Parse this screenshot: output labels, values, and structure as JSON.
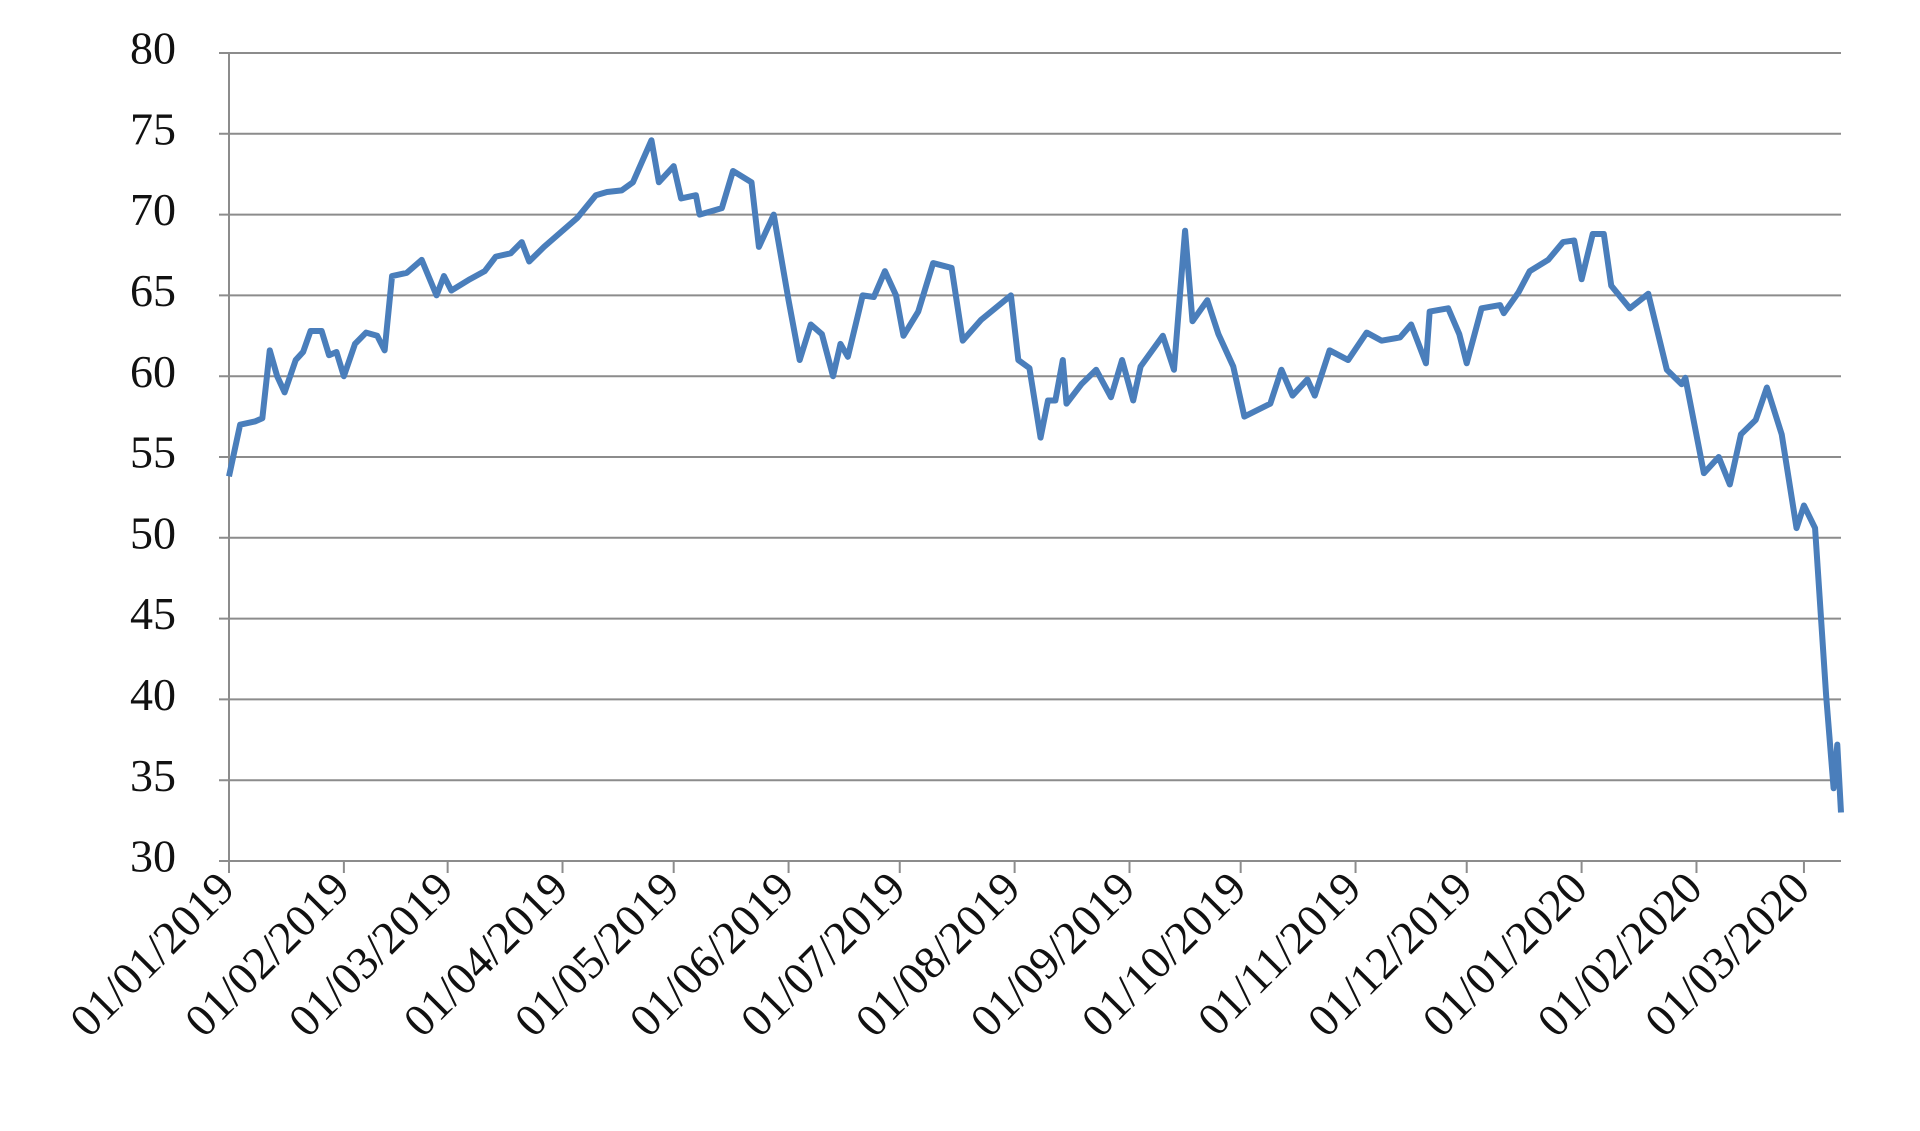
{
  "chart_data": {
    "type": "line",
    "x": [
      "2019-01-01",
      "2019-01-04",
      "2019-01-08",
      "2019-01-10",
      "2019-01-12",
      "2019-01-14",
      "2019-01-16",
      "2019-01-19",
      "2019-01-21",
      "2019-01-23",
      "2019-01-26",
      "2019-01-28",
      "2019-01-30",
      "2019-02-01",
      "2019-02-04",
      "2019-02-07",
      "2019-02-10",
      "2019-02-12",
      "2019-02-14",
      "2019-02-18",
      "2019-02-22",
      "2019-02-26",
      "2019-02-28",
      "2019-03-02",
      "2019-03-07",
      "2019-03-11",
      "2019-03-14",
      "2019-03-18",
      "2019-03-21",
      "2019-03-23",
      "2019-03-27",
      "2019-04-01",
      "2019-04-05",
      "2019-04-10",
      "2019-04-13",
      "2019-04-17",
      "2019-04-20",
      "2019-04-25",
      "2019-04-27",
      "2019-05-01",
      "2019-05-03",
      "2019-05-07",
      "2019-05-08",
      "2019-05-14",
      "2019-05-17",
      "2019-05-22",
      "2019-05-24",
      "2019-05-28",
      "2019-06-01",
      "2019-06-04",
      "2019-06-07",
      "2019-06-10",
      "2019-06-13",
      "2019-06-15",
      "2019-06-17",
      "2019-06-21",
      "2019-06-24",
      "2019-06-27",
      "2019-06-30",
      "2019-07-02",
      "2019-07-06",
      "2019-07-10",
      "2019-07-15",
      "2019-07-18",
      "2019-07-23",
      "2019-07-31",
      "2019-08-02",
      "2019-08-05",
      "2019-08-08",
      "2019-08-10",
      "2019-08-12",
      "2019-08-14",
      "2019-08-15",
      "2019-08-19",
      "2019-08-23",
      "2019-08-27",
      "2019-08-30",
      "2019-09-02",
      "2019-09-04",
      "2019-09-10",
      "2019-09-13",
      "2019-09-16",
      "2019-09-18",
      "2019-09-22",
      "2019-09-25",
      "2019-09-29",
      "2019-10-02",
      "2019-10-09",
      "2019-10-12",
      "2019-10-15",
      "2019-10-19",
      "2019-10-21",
      "2019-10-25",
      "2019-10-30",
      "2019-11-04",
      "2019-11-08",
      "2019-11-13",
      "2019-11-16",
      "2019-11-20",
      "2019-11-21",
      "2019-11-26",
      "2019-11-29",
      "2019-12-01",
      "2019-12-05",
      "2019-12-10",
      "2019-12-11",
      "2019-12-15",
      "2019-12-18",
      "2019-12-23",
      "2019-12-27",
      "2019-12-30",
      "2020-01-01",
      "2020-01-04",
      "2020-01-07",
      "2020-01-09",
      "2020-01-14",
      "2020-01-19",
      "2020-01-24",
      "2020-01-28",
      "2020-01-29",
      "2020-02-03",
      "2020-02-07",
      "2020-02-10",
      "2020-02-13",
      "2020-02-17",
      "2020-02-20",
      "2020-02-24",
      "2020-02-28",
      "2020-03-01",
      "2020-03-04",
      "2020-03-07",
      "2020-03-09",
      "2020-03-10",
      "2020-03-11"
    ],
    "series": [
      {
        "color": "#4a7ebb",
        "values": [
          53.8,
          57,
          57.2,
          57.4,
          61.6,
          60,
          59,
          61,
          61.5,
          62.8,
          62.8,
          61.3,
          61.5,
          60,
          62,
          62.7,
          62.5,
          61.6,
          66.2,
          66.4,
          67.2,
          65,
          66.2,
          65.3,
          66,
          66.5,
          67.4,
          67.6,
          68.3,
          67.1,
          68,
          69,
          69.8,
          71.2,
          71.4,
          71.5,
          72,
          74.6,
          72,
          73,
          71,
          71.2,
          70,
          70.4,
          72.7,
          72,
          68,
          70,
          64.7,
          61,
          63.2,
          62.6,
          60,
          62,
          61.2,
          65,
          64.9,
          66.5,
          65,
          62.5,
          64,
          67,
          66.7,
          62.2,
          63.5,
          65,
          61,
          60.5,
          56.2,
          58.5,
          58.5,
          61,
          58.3,
          59.5,
          60.4,
          58.7,
          61,
          58.5,
          60.6,
          62.5,
          60.4,
          69,
          63.4,
          64.7,
          62.6,
          60.6,
          57.5,
          58.3,
          60.4,
          58.8,
          59.8,
          58.8,
          61.6,
          61,
          62.7,
          62.2,
          62.4,
          63.2,
          60.8,
          64,
          64.2,
          62.6,
          60.8,
          64.2,
          64.4,
          63.9,
          65.2,
          66.5,
          67.2,
          68.3,
          68.4,
          66,
          68.8,
          68.8,
          65.6,
          64.2,
          65.1,
          60.4,
          59.5,
          59.9,
          54,
          55,
          53.3,
          56.4,
          57.3,
          59.3,
          56.4,
          50.6,
          52,
          50.6,
          40.2,
          34.5,
          37.2,
          33
        ]
      }
    ],
    "xlim": [
      "2019-01-01",
      "2020-03-11"
    ],
    "xticks": [
      {
        "value": "2019-01-01",
        "label": "01/01/2019"
      },
      {
        "value": "2019-02-01",
        "label": "01/02/2019"
      },
      {
        "value": "2019-03-01",
        "label": "01/03/2019"
      },
      {
        "value": "2019-04-01",
        "label": "01/04/2019"
      },
      {
        "value": "2019-05-01",
        "label": "01/05/2019"
      },
      {
        "value": "2019-06-01",
        "label": "01/06/2019"
      },
      {
        "value": "2019-07-01",
        "label": "01/07/2019"
      },
      {
        "value": "2019-08-01",
        "label": "01/08/2019"
      },
      {
        "value": "2019-09-01",
        "label": "01/09/2019"
      },
      {
        "value": "2019-10-01",
        "label": "01/10/2019"
      },
      {
        "value": "2019-11-01",
        "label": "01/11/2019"
      },
      {
        "value": "2019-12-01",
        "label": "01/12/2019"
      },
      {
        "value": "2020-01-01",
        "label": "01/01/2020"
      },
      {
        "value": "2020-02-01",
        "label": "01/02/2020"
      },
      {
        "value": "2020-03-01",
        "label": "01/03/2020"
      }
    ],
    "ylim": [
      30,
      80
    ],
    "yticks": [
      30,
      35,
      40,
      45,
      50,
      55,
      60,
      65,
      70,
      75,
      80
    ],
    "grid": true
  }
}
